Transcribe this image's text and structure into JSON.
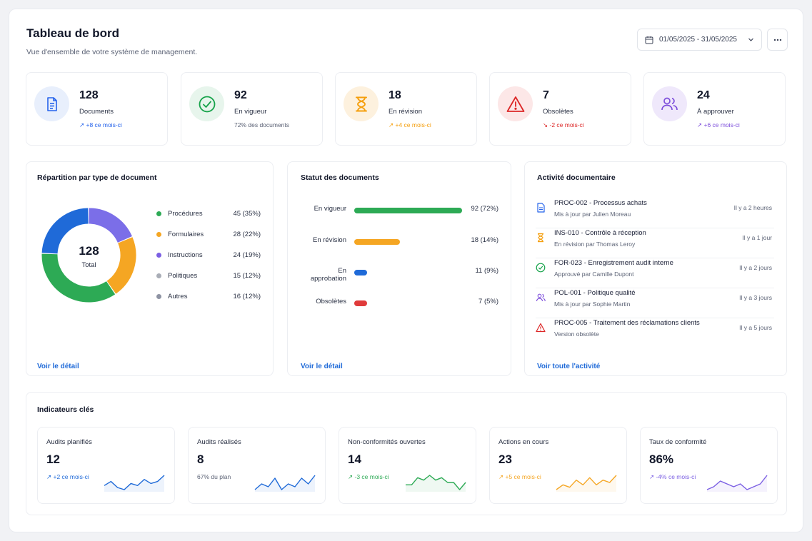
{
  "header": {
    "title": "Tableau de bord",
    "subtitle": "Vue d'ensemble de votre système de management.",
    "date_range": "01/05/2025 - 31/05/2025",
    "more_icon": "more-horizontal-icon"
  },
  "stats": [
    {
      "value": "128",
      "label": "Documents",
      "trend": "↗ +8 ce mois-ci",
      "icon": "document-icon",
      "color": "#2563eb",
      "bg": "#e8effc"
    },
    {
      "value": "92",
      "label": "En vigueur",
      "trend": "72% des documents",
      "icon": "check-circle-icon",
      "color": "#16a34a",
      "bg": "#e7f5ec"
    },
    {
      "value": "18",
      "label": "En révision",
      "trend": "↗ +4 ce mois-ci",
      "icon": "hourglass-icon",
      "color": "#f59e0b",
      "bg": "#fdf1de"
    },
    {
      "value": "7",
      "label": "Obsolètes",
      "trend": "↘ -2 ce mois-ci",
      "icon": "warning-triangle-icon",
      "color": "#dc2626",
      "bg": "#fce7e7"
    },
    {
      "value": "24",
      "label": "À approuver",
      "trend": "↗ +6 ce mois-ci",
      "icon": "users-icon",
      "color": "#7c4ddb",
      "bg": "#efe8fb"
    }
  ],
  "repartition": {
    "title": "Répartition par type de document",
    "total_value": "128",
    "total_label": "Total",
    "link": "Voir le détail",
    "chart_data": {
      "type": "pie",
      "categories": [
        "Procédures",
        "Formulaires",
        "Instructions",
        "Politiques",
        "Autres"
      ],
      "values": [
        45,
        28,
        24,
        15,
        16
      ],
      "labels": [
        "45 (35%)",
        "28 (22%)",
        "24 (19%)",
        "15 (12%)",
        "16 (12%)"
      ],
      "colors": [
        "#2daa55",
        "#f5a623",
        "#7b5fe3",
        "#a9adb6",
        "#8e93a3"
      ]
    }
  },
  "statut": {
    "title": "Statut des documents",
    "link": "Voir le détail",
    "chart_data": {
      "type": "bar",
      "categories": [
        "En vigueur",
        "En révision",
        "En approbation",
        "Obsolètes"
      ],
      "values": [
        92,
        18,
        11,
        7
      ],
      "labels": [
        "92 (72%)",
        "18 (14%)",
        "11 (9%)",
        "7 (5%)"
      ],
      "colors": [
        "#2daa55",
        "#f5a623",
        "#1f6ad8",
        "#e03b3b"
      ],
      "xlim": [
        0,
        92
      ]
    }
  },
  "activite": {
    "title": "Activité documentaire",
    "link": "Voir toute l'activité",
    "items": [
      {
        "title": "PROC-002 - Processus achats",
        "sub": "Mis à jour par Julien Moreau",
        "time": "Il y a 2 heures",
        "icon": "document-icon",
        "color": "#2563eb"
      },
      {
        "title": "INS-010 - Contrôle à réception",
        "sub": "En révision par Thomas Leroy",
        "time": "Il y a 1 jour",
        "icon": "hourglass-icon",
        "color": "#f59e0b"
      },
      {
        "title": "FOR-023 - Enregistrement audit interne",
        "sub": "Approuvé par Camille Dupont",
        "time": "Il y a 2 jours",
        "icon": "check-circle-icon",
        "color": "#16a34a"
      },
      {
        "title": "POL-001 - Politique qualité",
        "sub": "Mis à jour par Sophie Martin",
        "time": "Il y a 3 jours",
        "icon": "users-icon",
        "color": "#7c4ddb"
      },
      {
        "title": "PROC-005 - Traitement des réclamations clients",
        "sub": "Version obsolète",
        "time": "Il y a 5 jours",
        "icon": "warning-triangle-icon",
        "color": "#dc2626"
      }
    ]
  },
  "indicateurs": {
    "title": "Indicateurs clés",
    "items": [
      {
        "label": "Audits planifiés",
        "value": "12",
        "trend": "↗ +2 ce mois-ci",
        "color": "#1f6ad8",
        "chart_data": {
          "type": "line",
          "values": [
            4,
            6,
            3,
            2,
            5,
            4,
            7,
            5,
            6,
            9
          ]
        }
      },
      {
        "label": "Audits réalisés",
        "value": "8",
        "trend": "67% du plan",
        "color": "#1f6ad8",
        "chart_data": {
          "type": "line",
          "values": [
            3,
            5,
            4,
            7,
            3,
            5,
            4,
            7,
            5,
            8
          ]
        }
      },
      {
        "label": "Non-conformités ouvertes",
        "value": "14",
        "trend": "↗ -3 ce mois-ci",
        "color": "#2daa55",
        "chart_data": {
          "type": "line",
          "values": [
            5,
            5,
            8,
            7,
            9,
            7,
            8,
            6,
            6,
            3,
            6
          ]
        }
      },
      {
        "label": "Actions en cours",
        "value": "23",
        "trend": "↗ +5 ce mois-ci",
        "color": "#f5a623",
        "chart_data": {
          "type": "line",
          "values": [
            2,
            4,
            3,
            6,
            4,
            7,
            4,
            6,
            5,
            8
          ]
        }
      },
      {
        "label": "Taux de conformité",
        "value": "86%",
        "trend": "↗ -4% ce mois-ci",
        "color": "#7b5fe3",
        "chart_data": {
          "type": "line",
          "values": [
            4,
            5,
            7,
            6,
            5,
            6,
            4,
            5,
            6,
            9
          ]
        }
      }
    ]
  }
}
